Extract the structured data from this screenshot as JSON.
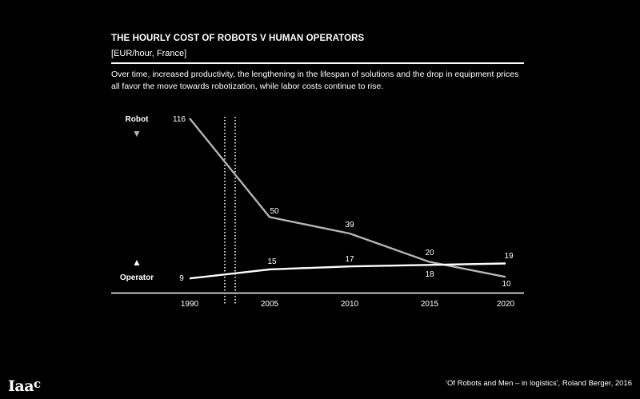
{
  "header": {
    "title": "THE HOURLY COST OF ROBOTS V HUMAN OPERATORS",
    "subtitle": "[EUR/hour, France]",
    "description": "Over time, increased productivity, the lengthening in the lifespan of solutions and the drop in equipment prices all favor the move towards robotization, while labor costs continue to rise."
  },
  "footer": {
    "logo_text": "Iaac",
    "source": "'Of Robots and Men – in logistics', Roland Berger, 2016"
  },
  "colors": {
    "background": "#000000",
    "robot": "#b5b5b5",
    "operator": "#ffffff",
    "axis": "#ffffff"
  },
  "chart_data": {
    "type": "line",
    "title": "THE HOURLY COST OF ROBOTS V HUMAN OPERATORS",
    "ylabel": "[EUR/hour, France]",
    "xlabel": "",
    "categories": [
      "1990",
      "2005",
      "2010",
      "2015",
      "2020"
    ],
    "axis_break_between": [
      "1990",
      "2005"
    ],
    "ylim": [
      0,
      120
    ],
    "grid": false,
    "series": [
      {
        "name": "Robot",
        "marker": "▼",
        "values": [
          116,
          50,
          39,
          20,
          10
        ],
        "labels": [
          "116",
          "50",
          "39",
          "20",
          "10"
        ]
      },
      {
        "name": "Operator",
        "marker": "▲",
        "values": [
          9,
          15,
          17,
          18,
          19
        ],
        "labels": [
          "9",
          "15",
          "17",
          "18",
          "19"
        ]
      }
    ]
  }
}
